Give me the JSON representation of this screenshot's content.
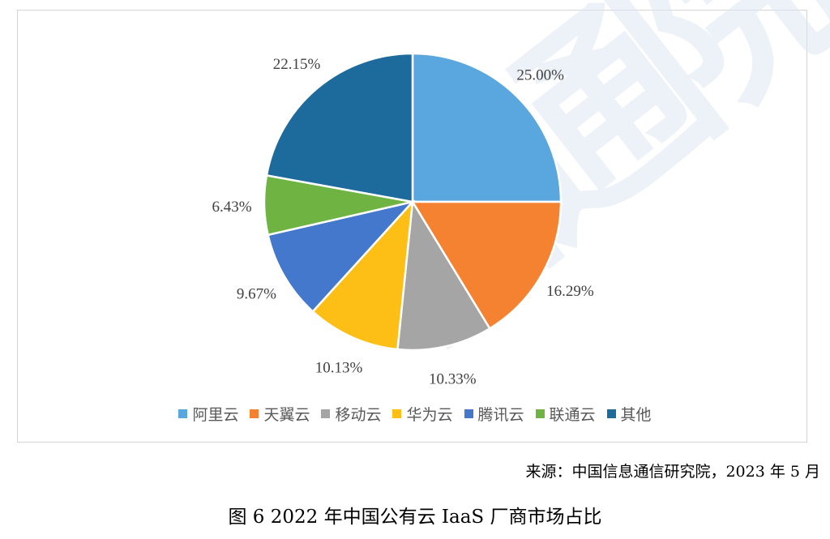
{
  "chart_data": {
    "type": "pie",
    "categories": [
      "阿里云",
      "天翼云",
      "移动云",
      "华为云",
      "腾讯云",
      "联通云",
      "其他"
    ],
    "values": [
      25.0,
      16.29,
      10.33,
      10.13,
      9.67,
      6.43,
      22.15
    ],
    "value_labels": [
      "25.00%",
      "16.29%",
      "10.33%",
      "10.13%",
      "9.67%",
      "6.43%",
      "22.15%"
    ],
    "colors": [
      "#5aa6df",
      "#f58231",
      "#a5a5a5",
      "#fdbf16",
      "#4478cd",
      "#6fb443",
      "#1d6a9c"
    ],
    "legend_position": "bottom",
    "start_angle": "12 o'clock",
    "direction": "clockwise"
  },
  "watermark": "信通院",
  "source": "来源：中国信息通信研究院，2023 年 5 月",
  "caption": "图 6 2022 年中国公有云 IaaS 厂商市场占比"
}
